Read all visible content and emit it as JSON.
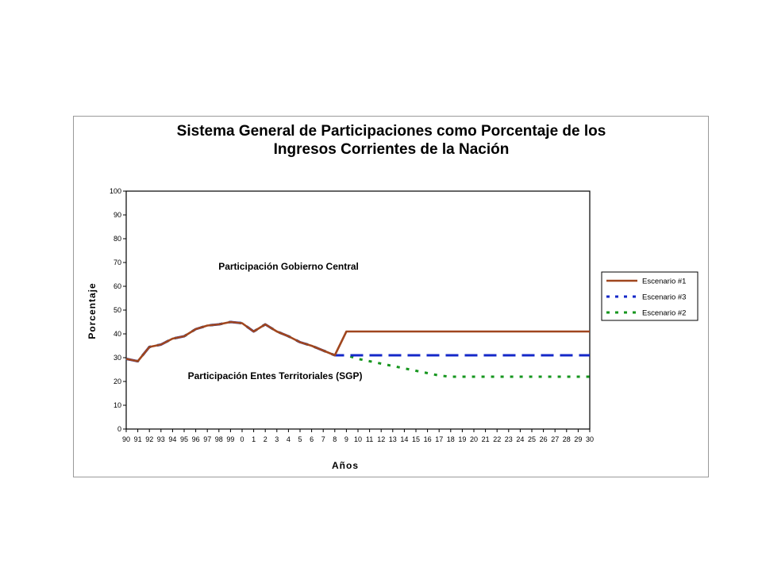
{
  "chart_data": {
    "type": "line",
    "title": [
      "Sistema General de Participaciones como Porcentaje de los",
      "Ingresos Corrientes de la Nación"
    ],
    "xlabel": "Años",
    "ylabel": "Porcentaje",
    "ylim": [
      0,
      100
    ],
    "yticks": [
      0,
      10,
      20,
      30,
      40,
      50,
      60,
      70,
      80,
      90,
      100
    ],
    "grid": false,
    "legend_position": "right",
    "categories": [
      "90",
      "91",
      "92",
      "93",
      "94",
      "95",
      "96",
      "97",
      "98",
      "99",
      "0",
      "1",
      "2",
      "3",
      "4",
      "5",
      "6",
      "7",
      "8",
      "9",
      "10",
      "11",
      "12",
      "13",
      "14",
      "15",
      "16",
      "17",
      "18",
      "19",
      "20",
      "21",
      "22",
      "23",
      "24",
      "25",
      "26",
      "27",
      "28",
      "29",
      "30"
    ],
    "series": [
      {
        "name": "Escenario #1",
        "color": "#a0461e",
        "style": "solid",
        "values": [
          29.5,
          28.5,
          34.5,
          35.5,
          38,
          39,
          42,
          43.5,
          44,
          45,
          44.5,
          41,
          44,
          41,
          39,
          36.5,
          35,
          33,
          31,
          41,
          41,
          41,
          41,
          41,
          41,
          41,
          41,
          41,
          41,
          41,
          41,
          41,
          41,
          41,
          41,
          41,
          41,
          41,
          41,
          41,
          41
        ]
      },
      {
        "name": "Escenario #3",
        "color": "#1428c8",
        "style": "dashed",
        "values": [
          29.5,
          28.5,
          34.5,
          35.5,
          38,
          39,
          42,
          43.5,
          44,
          45,
          44.5,
          41,
          44,
          41,
          39,
          36.5,
          35,
          33,
          31,
          31,
          31,
          31,
          31,
          31,
          31,
          31,
          31,
          31,
          31,
          31,
          31,
          31,
          31,
          31,
          31,
          31,
          31,
          31,
          31,
          31,
          31
        ]
      },
      {
        "name": "Escenario #2",
        "color": "#16961e",
        "style": "dotted",
        "values": [
          29.5,
          28.5,
          34.5,
          35.5,
          38,
          39,
          42,
          43.5,
          44,
          45,
          44.5,
          41,
          44,
          41,
          39,
          36.5,
          35,
          33,
          31,
          31,
          29.5,
          28.5,
          27.5,
          26.5,
          25.5,
          24.5,
          23.5,
          22.5,
          22,
          22,
          22,
          22,
          22,
          22,
          22,
          22,
          22,
          22,
          22,
          22,
          22
        ]
      }
    ],
    "legend_order": [
      "Escenario #1",
      "Escenario #3",
      "Escenario #2"
    ],
    "annotations": [
      {
        "text": "Participación Gobierno Central",
        "x": "2",
        "y": 67
      },
      {
        "text": "Participación Entes Territoriales (SGP)",
        "x": "1",
        "y": 21
      }
    ]
  }
}
